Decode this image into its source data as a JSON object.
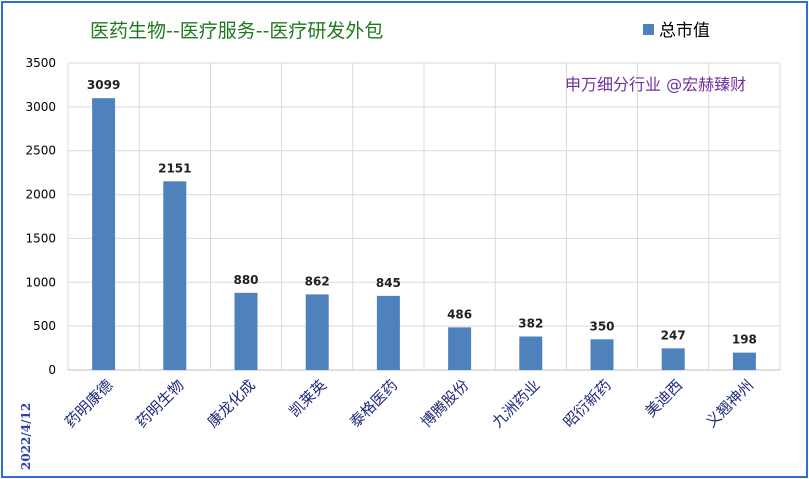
{
  "chart_data": {
    "type": "bar",
    "title": "医药生物--医疗服务--医疗研发外包",
    "watermark": "申万细分行业 @宏赫臻财",
    "date_stamp": "2022/4/12",
    "legend": {
      "label": "总市值",
      "position": "top-right"
    },
    "categories": [
      "药明康德",
      "药明生物",
      "康龙化成",
      "凯莱英",
      "泰格医药",
      "博腾股份",
      "九洲药业",
      "昭衍新药",
      "美迪西",
      "义翘神州"
    ],
    "series": [
      {
        "name": "总市值",
        "values": [
          3099,
          2151,
          880,
          862,
          845,
          486,
          382,
          350,
          247,
          198
        ]
      }
    ],
    "ylim": [
      0,
      3500
    ],
    "yticks": [
      0,
      500,
      1000,
      1500,
      2000,
      2500,
      3000,
      3500
    ],
    "grid": true,
    "colors": {
      "bar": "#4f81bd",
      "title": "#1f7a1f",
      "watermark": "#7030a0",
      "border": "#2f6fd0"
    }
  }
}
